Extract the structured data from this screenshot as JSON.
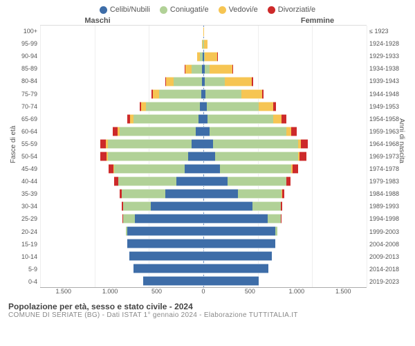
{
  "legend": [
    {
      "label": "Celibi/Nubili",
      "color": "#3e6da8"
    },
    {
      "label": "Coniugati/e",
      "color": "#b1d197"
    },
    {
      "label": "Vedovi/e",
      "color": "#f6c553"
    },
    {
      "label": "Divorziati/e",
      "color": "#cd2a2a"
    }
  ],
  "headers": {
    "left": "Maschi",
    "right": "Femmine"
  },
  "axis_labels": {
    "left": "Fasce di età",
    "right": "Anni di nascita"
  },
  "y_left": [
    "100+",
    "95-99",
    "90-94",
    "85-89",
    "80-84",
    "75-79",
    "70-74",
    "65-69",
    "60-64",
    "55-59",
    "50-54",
    "45-49",
    "40-44",
    "35-39",
    "30-34",
    "25-29",
    "20-24",
    "15-19",
    "10-14",
    "5-9",
    "0-4"
  ],
  "y_right": [
    "≤ 1923",
    "1924-1928",
    "1929-1933",
    "1934-1938",
    "1939-1943",
    "1944-1948",
    "1949-1953",
    "1954-1958",
    "1959-1963",
    "1964-1968",
    "1969-1973",
    "1974-1978",
    "1979-1983",
    "1984-1988",
    "1989-1993",
    "1994-1998",
    "1999-2003",
    "2004-2008",
    "2009-2013",
    "2014-2018",
    "2019-2023"
  ],
  "x_ticks": [
    "1.500",
    "1.000",
    "500",
    "0",
    "500",
    "1.000",
    "1.500"
  ],
  "x_max": 1500,
  "title": "Popolazione per età, sesso e stato civile - 2024",
  "subtitle": "COMUNE DI SERIATE (BG) - Dati ISTAT 1° gennaio 2024 - Elaborazione TUTTITALIA.IT",
  "colors": {
    "celibi": "#3e6da8",
    "coniugati": "#b1d197",
    "vedovi": "#f6c553",
    "divorziati": "#cd2a2a",
    "grid": "#eee",
    "center": "#6a8fc5",
    "bg": "#ffffff"
  },
  "chart_type": "population-pyramid",
  "data": {
    "male": [
      {
        "c": 0,
        "m": 0,
        "v": 0,
        "d": 0
      },
      {
        "c": 0,
        "m": 5,
        "v": 8,
        "d": 0
      },
      {
        "c": 5,
        "m": 25,
        "v": 30,
        "d": 0
      },
      {
        "c": 10,
        "m": 100,
        "v": 55,
        "d": 5
      },
      {
        "c": 15,
        "m": 260,
        "v": 70,
        "d": 5
      },
      {
        "c": 20,
        "m": 390,
        "v": 55,
        "d": 10
      },
      {
        "c": 30,
        "m": 500,
        "v": 40,
        "d": 15
      },
      {
        "c": 45,
        "m": 600,
        "v": 30,
        "d": 25
      },
      {
        "c": 70,
        "m": 700,
        "v": 20,
        "d": 40
      },
      {
        "c": 110,
        "m": 770,
        "v": 15,
        "d": 55
      },
      {
        "c": 140,
        "m": 740,
        "v": 10,
        "d": 55
      },
      {
        "c": 170,
        "m": 650,
        "v": 5,
        "d": 45
      },
      {
        "c": 250,
        "m": 530,
        "v": 3,
        "d": 35
      },
      {
        "c": 350,
        "m": 400,
        "v": 0,
        "d": 20
      },
      {
        "c": 480,
        "m": 260,
        "v": 0,
        "d": 10
      },
      {
        "c": 630,
        "m": 110,
        "v": 0,
        "d": 5
      },
      {
        "c": 700,
        "m": 15,
        "v": 0,
        "d": 0
      },
      {
        "c": 700,
        "m": 0,
        "v": 0,
        "d": 0
      },
      {
        "c": 680,
        "m": 0,
        "v": 0,
        "d": 0
      },
      {
        "c": 640,
        "m": 0,
        "v": 0,
        "d": 0
      },
      {
        "c": 550,
        "m": 0,
        "v": 0,
        "d": 0
      }
    ],
    "female": [
      {
        "c": 2,
        "m": 0,
        "v": 3,
        "d": 0
      },
      {
        "c": 3,
        "m": 2,
        "v": 35,
        "d": 0
      },
      {
        "c": 5,
        "m": 10,
        "v": 110,
        "d": 2
      },
      {
        "c": 10,
        "m": 50,
        "v": 210,
        "d": 5
      },
      {
        "c": 15,
        "m": 180,
        "v": 250,
        "d": 10
      },
      {
        "c": 20,
        "m": 330,
        "v": 190,
        "d": 15
      },
      {
        "c": 30,
        "m": 480,
        "v": 130,
        "d": 25
      },
      {
        "c": 40,
        "m": 600,
        "v": 80,
        "d": 40
      },
      {
        "c": 60,
        "m": 700,
        "v": 45,
        "d": 55
      },
      {
        "c": 90,
        "m": 780,
        "v": 25,
        "d": 65
      },
      {
        "c": 110,
        "m": 760,
        "v": 15,
        "d": 60
      },
      {
        "c": 150,
        "m": 660,
        "v": 10,
        "d": 50
      },
      {
        "c": 220,
        "m": 540,
        "v": 5,
        "d": 35
      },
      {
        "c": 320,
        "m": 400,
        "v": 3,
        "d": 20
      },
      {
        "c": 450,
        "m": 260,
        "v": 0,
        "d": 12
      },
      {
        "c": 590,
        "m": 120,
        "v": 0,
        "d": 5
      },
      {
        "c": 660,
        "m": 20,
        "v": 0,
        "d": 0
      },
      {
        "c": 660,
        "m": 0,
        "v": 0,
        "d": 0
      },
      {
        "c": 630,
        "m": 0,
        "v": 0,
        "d": 0
      },
      {
        "c": 600,
        "m": 0,
        "v": 0,
        "d": 0
      },
      {
        "c": 510,
        "m": 0,
        "v": 0,
        "d": 0
      }
    ]
  }
}
